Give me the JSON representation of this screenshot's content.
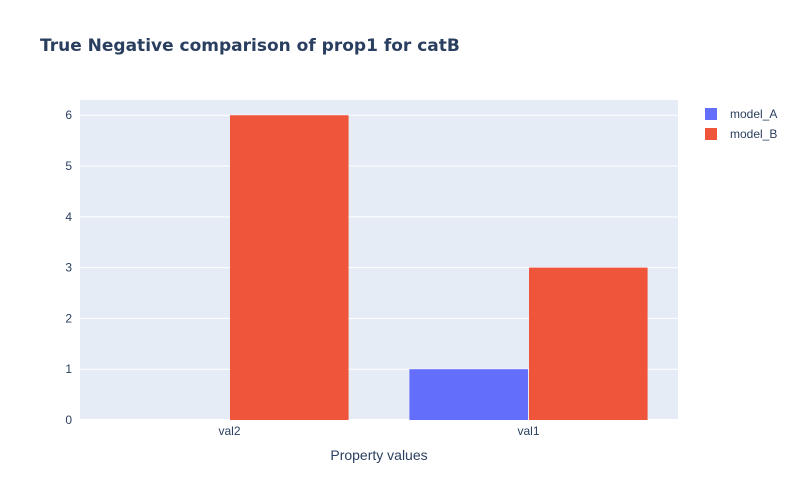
{
  "chart_data": {
    "type": "bar",
    "title": "True Negative comparison of prop1 for catB",
    "xlabel": "Property values",
    "ylabel": "",
    "categories": [
      "val2",
      "val1"
    ],
    "series": [
      {
        "name": "model_A",
        "values": [
          0,
          1
        ],
        "color": "#636efa"
      },
      {
        "name": "model_B",
        "values": [
          6,
          3
        ],
        "color": "#ef553b"
      }
    ],
    "ylim": [
      0,
      6.3
    ],
    "yticks": [
      0,
      1,
      2,
      3,
      4,
      5,
      6
    ],
    "grid": true,
    "legend_position": "top-right",
    "plot_background": "#e5ecf6"
  }
}
